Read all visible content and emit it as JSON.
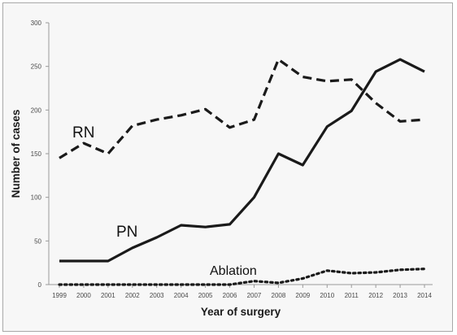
{
  "chart_data": {
    "type": "line",
    "title": "",
    "xlabel": "Year of surgery",
    "ylabel": "Number of cases",
    "x": [
      "1999",
      "2000",
      "2001",
      "2002",
      "2003",
      "2004",
      "2005",
      "2006",
      "2007",
      "2008",
      "2009",
      "2010",
      "2011",
      "2012",
      "2013",
      "2014"
    ],
    "ylim": [
      0,
      300
    ],
    "yticks": [
      0,
      50,
      100,
      150,
      200,
      250,
      300
    ],
    "grid": false,
    "legend": "none",
    "series": [
      {
        "name": "RN",
        "style": "dashed",
        "color": "#1a1a1a",
        "values": [
          145,
          162,
          150,
          182,
          189,
          194,
          201,
          180,
          189,
          258,
          238,
          233,
          235,
          208,
          187,
          189
        ]
      },
      {
        "name": "PN",
        "style": "solid",
        "color": "#1a1a1a",
        "values": [
          27,
          27,
          27,
          42,
          54,
          68,
          66,
          69,
          100,
          150,
          137,
          181,
          199,
          244,
          258,
          244
        ]
      },
      {
        "name": "Ablation",
        "style": "dotted",
        "color": "#1a1a1a",
        "values": [
          0,
          0,
          0,
          0,
          0,
          0,
          0,
          0,
          4,
          2,
          7,
          16,
          13,
          14,
          17,
          18
        ]
      }
    ]
  }
}
